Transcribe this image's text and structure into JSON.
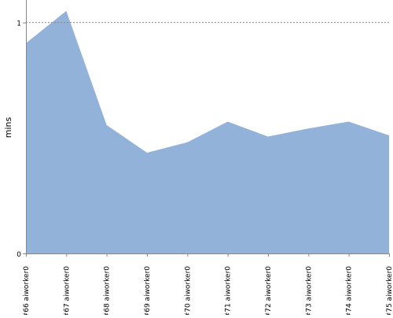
{
  "chart_data": {
    "type": "area",
    "title": "",
    "xlabel": "",
    "ylabel": "mins",
    "categories": [
      "#66 aiworker0",
      "#67 aiworker0",
      "#68 aiworker0",
      "#69 aiworker0",
      "#70 aiworker0",
      "#71 aiworker0",
      "#72 aiworker0",
      "#73 aiworker0",
      "#74 aiworker0",
      "#75 aiworker0"
    ],
    "series": [
      {
        "values": [
          0.91,
          1.05,
          0.555,
          0.435,
          0.48,
          0.57,
          0.505,
          0.54,
          0.57,
          0.51
        ],
        "color": "#92b2da"
      }
    ],
    "y_ticks": [
      {
        "value": 0,
        "label": "0"
      },
      {
        "value": 1,
        "label": "1"
      }
    ],
    "ylim": [
      0,
      1.1
    ],
    "reference_line": {
      "value": 1,
      "style": "dotted",
      "color": "#888888"
    },
    "axis_color": "#888888",
    "grid": false,
    "legend": "none"
  }
}
